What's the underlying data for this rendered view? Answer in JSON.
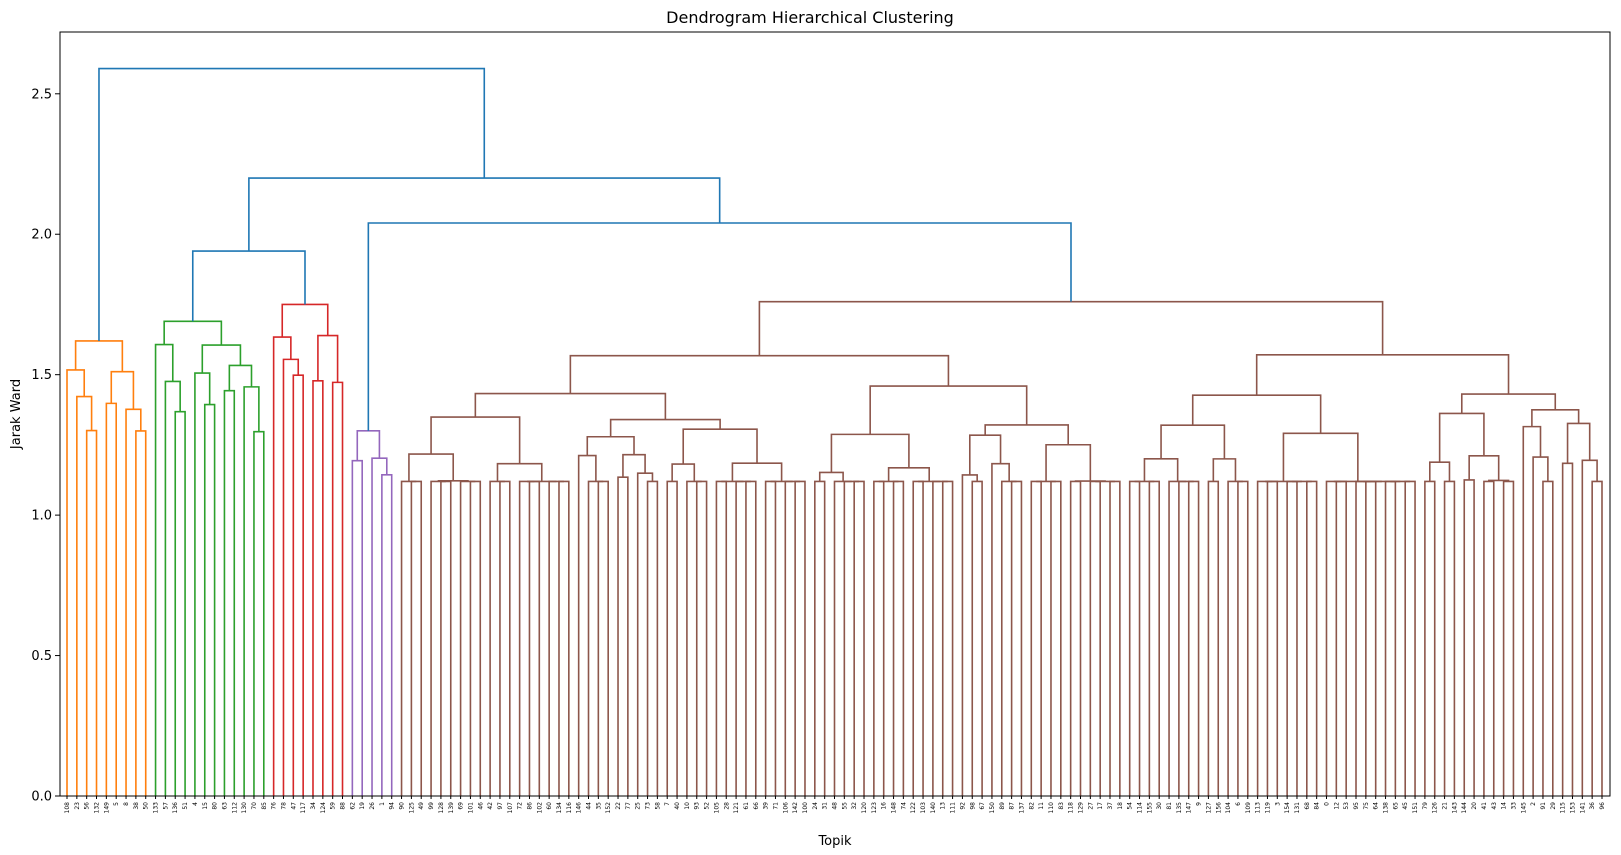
{
  "chart_data": {
    "type": "dendrogram",
    "title": "Dendrogram Hierarchical Clustering",
    "xlabel": "Topik",
    "ylabel": "Jarak Ward",
    "ylim": [
      0,
      2.72
    ],
    "yticks": [
      0.0,
      0.5,
      1.0,
      1.5,
      2.0,
      2.5
    ],
    "ytick_labels": [
      "0.0",
      "0.5",
      "1.0",
      "1.5",
      "2.0",
      "2.5"
    ],
    "grid": false,
    "leaves": [
      "108",
      "23",
      "56",
      "132",
      "149",
      "5",
      "8",
      "38",
      "50",
      "133",
      "57",
      "136",
      "51",
      "4",
      "15",
      "80",
      "63",
      "112",
      "130",
      "70",
      "85",
      "76",
      "78",
      "47",
      "117",
      "34",
      "124",
      "59",
      "88",
      "62",
      "19",
      "26",
      "1",
      "94",
      "90",
      "125",
      "49",
      "99",
      "128",
      "139",
      "69",
      "101",
      "46",
      "42",
      "97",
      "107",
      "72",
      "86",
      "102",
      "60",
      "134",
      "116",
      "146",
      "44",
      "35",
      "152",
      "22",
      "77",
      "25",
      "73",
      "58",
      "7",
      "40",
      "10",
      "93",
      "52",
      "105",
      "28",
      "121",
      "61",
      "66",
      "39",
      "71",
      "106",
      "142",
      "100",
      "24",
      "31",
      "48",
      "55",
      "32",
      "120",
      "123",
      "16",
      "148",
      "74",
      "122",
      "103",
      "140",
      "13",
      "111",
      "92",
      "98",
      "67",
      "150",
      "89",
      "87",
      "137",
      "82",
      "11",
      "110",
      "83",
      "118",
      "129",
      "27",
      "17",
      "37",
      "18",
      "54",
      "114",
      "155",
      "30",
      "81",
      "135",
      "147",
      "9",
      "127",
      "156",
      "104",
      "6",
      "109",
      "113",
      "119",
      "3",
      "154",
      "131",
      "68",
      "84",
      "0",
      "12",
      "53",
      "95",
      "75",
      "64",
      "138",
      "65",
      "45",
      "151",
      "79",
      "126",
      "21",
      "143",
      "144",
      "20",
      "41",
      "43",
      "14",
      "33",
      "145",
      "2",
      "91",
      "29",
      "115",
      "153",
      "141",
      "36",
      "96"
    ],
    "colors": {
      "orange": "#ff7f0e",
      "green": "#2ca02c",
      "red": "#d62728",
      "purple": "#9467bd",
      "brown": "#8c564b",
      "top": "#1f77b4"
    },
    "clusters": [
      {
        "color": "orange",
        "leaf_range": [
          0,
          8
        ],
        "merge_height": 1.62
      },
      {
        "color": "green",
        "leaf_range": [
          9,
          20
        ],
        "merge_height": 1.69
      },
      {
        "color": "red",
        "leaf_range": [
          21,
          28
        ],
        "merge_height": 1.75
      },
      {
        "color": "purple",
        "leaf_range": [
          29,
          33
        ],
        "merge_height": 1.3
      },
      {
        "color": "brown",
        "leaf_range": [
          34,
          156
        ],
        "merge_height": 1.76
      }
    ],
    "top_merges": [
      {
        "left": "green",
        "right": "red",
        "height": 1.94
      },
      {
        "left": "purple",
        "right": "brown",
        "height": 2.04
      },
      {
        "left": "green+red",
        "right": "purple+brown",
        "height": 2.2
      },
      {
        "left": "orange",
        "right": "rest",
        "height": 2.59
      }
    ]
  }
}
